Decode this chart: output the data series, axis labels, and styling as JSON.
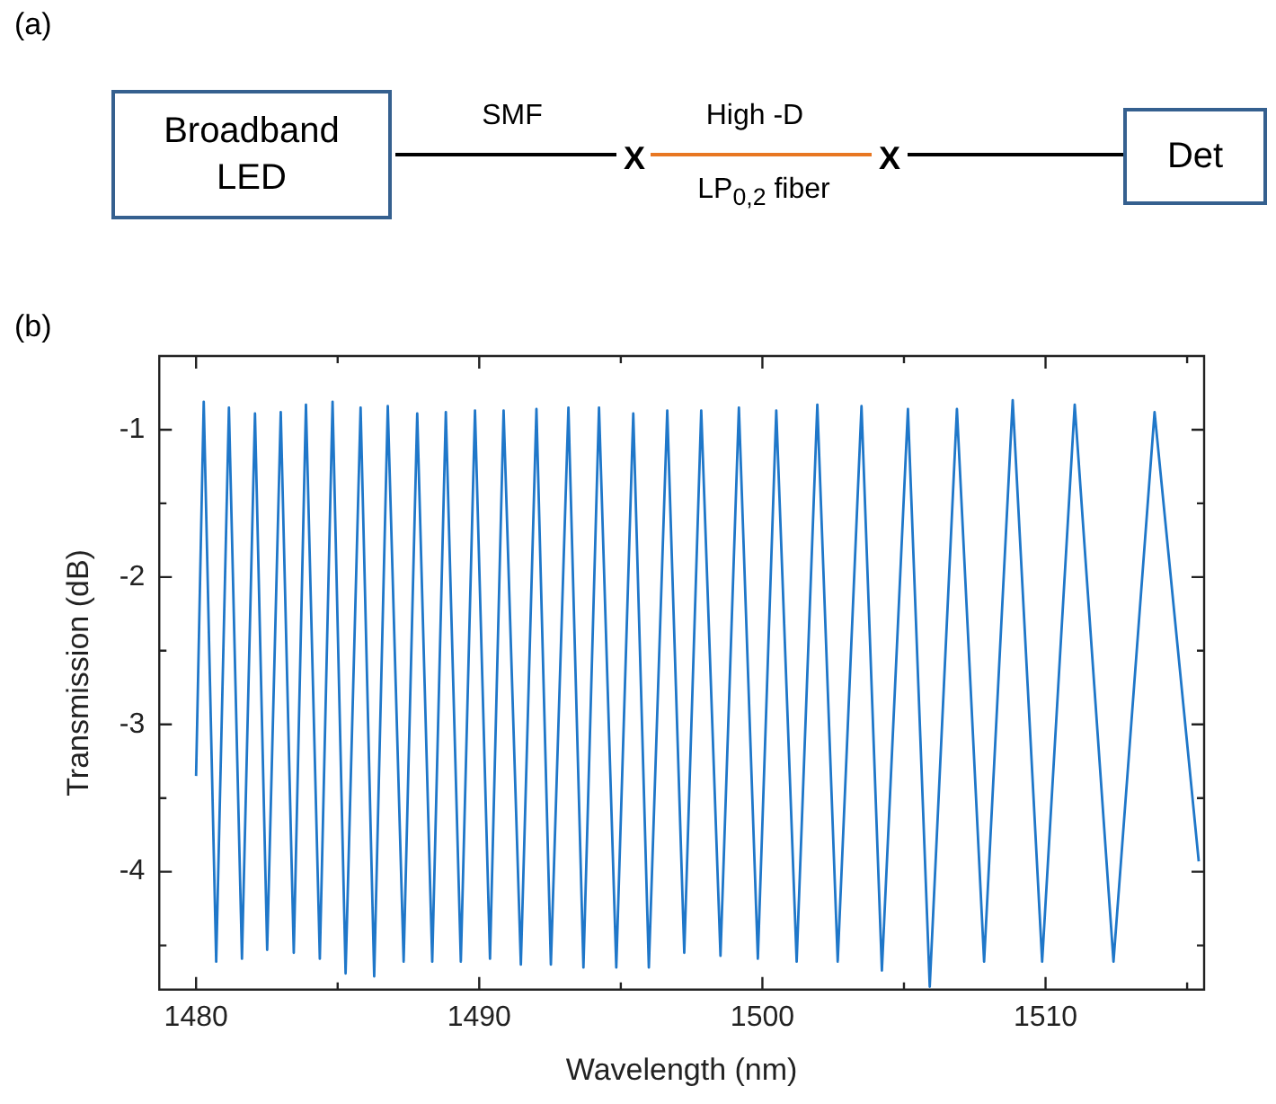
{
  "chart_data": [
    {
      "type": "other",
      "title": "(a)",
      "annotations": [
        "Broadband LED",
        "SMF",
        "X",
        "High -D",
        "LP$_{0,2}$ fiber",
        "X",
        "Det"
      ]
    },
    {
      "type": "line",
      "title": "(b)",
      "xlabel": "Wavelength (nm)",
      "ylabel": "Transmission (dB)",
      "xlim": [
        1478.7,
        1515.6
      ],
      "ylim": [
        -4.8,
        -0.5
      ],
      "xticks": [
        1480,
        {
          "value": 1485,
          "label": null
        },
        1490,
        {
          "value": 1495,
          "label": null
        },
        1500,
        {
          "value": 1505,
          "label": null
        },
        1510,
        {
          "value": 1515,
          "label": null
        }
      ],
      "yticks": [
        -1,
        {
          "value": -1.5,
          "label": null
        },
        -2,
        {
          "value": -2.5,
          "label": null
        },
        -3,
        {
          "value": -3.5,
          "label": null
        },
        -4,
        {
          "value": -4.5,
          "label": null
        }
      ],
      "grid": false,
      "legend": false,
      "marker": "none",
      "line_style": "solid",
      "x": [
        1480.0,
        1480.27,
        1480.71,
        1481.16,
        1481.62,
        1482.08,
        1482.51,
        1482.99,
        1483.45,
        1483.88,
        1484.37,
        1484.82,
        1485.28,
        1485.81,
        1486.29,
        1486.77,
        1487.33,
        1487.81,
        1488.34,
        1488.82,
        1489.35,
        1489.85,
        1490.38,
        1490.86,
        1491.47,
        1492.02,
        1492.53,
        1493.15,
        1493.68,
        1494.23,
        1494.84,
        1495.44,
        1495.99,
        1496.64,
        1497.24,
        1497.84,
        1498.52,
        1499.17,
        1499.84,
        1500.49,
        1501.21,
        1501.94,
        1502.66,
        1503.5,
        1504.22,
        1505.14,
        1505.91,
        1506.87,
        1507.83,
        1508.84,
        1509.88,
        1511.03,
        1512.4,
        1513.85,
        1515.41
      ],
      "series": [
        {
          "color": "#1f77c9",
          "values": [
            -3.35,
            -0.81,
            -4.61,
            -0.85,
            -4.59,
            -0.89,
            -4.53,
            -0.88,
            -4.55,
            -0.83,
            -4.59,
            -0.81,
            -4.69,
            -0.85,
            -4.71,
            -0.84,
            -4.61,
            -0.89,
            -4.61,
            -0.88,
            -4.61,
            -0.87,
            -4.59,
            -0.87,
            -4.63,
            -0.86,
            -4.63,
            -0.85,
            -4.65,
            -0.85,
            -4.65,
            -0.89,
            -4.65,
            -0.87,
            -4.55,
            -0.87,
            -4.57,
            -0.85,
            -4.59,
            -0.87,
            -4.61,
            -0.83,
            -4.61,
            -0.84,
            -4.67,
            -0.86,
            -4.78,
            -0.86,
            -4.61,
            -0.8,
            -4.61,
            -0.83,
            -4.61,
            -0.88,
            -3.93
          ]
        }
      ]
    }
  ]
}
